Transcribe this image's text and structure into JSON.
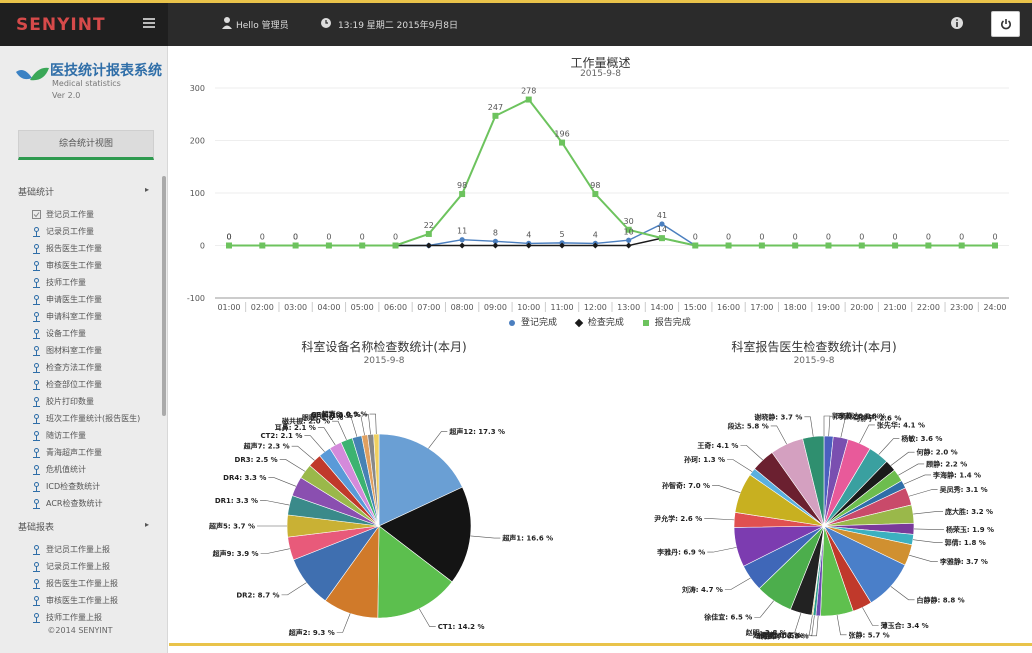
{
  "brand": "SENYINT",
  "header": {
    "hello": "Hello 管理员",
    "datetime": "13:19 星期二 2015年9月8日"
  },
  "sidebar": {
    "title": "医技统计报表系统",
    "subtitle": "Medical statistics",
    "version": "Ver 2.0",
    "overview_button": "综合统计视图",
    "section1": "基础统计",
    "section1_items": [
      "登记员工作量",
      "记录员工作量",
      "报告医生工作量",
      "审核医生工作量",
      "技师工作量",
      "申请医生工作量",
      "申请科室工作量",
      "设备工作量",
      "图材料室工作量",
      "检查方法工作量",
      "检查部位工作量",
      "胶片打印数量",
      "班次工作量统计(报告医生)",
      "随访工作量",
      "青海超声工作量",
      "危机值统计",
      "ICD检查数统计",
      "ACR检查数统计"
    ],
    "section2": "基础报表",
    "section2_items": [
      "登记员工作量上报",
      "记录员工作量上报",
      "报告医生工作量上报",
      "审核医生工作量上报",
      "技师工作量上报"
    ],
    "copyright": "©2014 SENYINT"
  },
  "line_chart_titles": {
    "title": "工作量概述",
    "date": "2015-9-8"
  },
  "legend": [
    "登记完成",
    "检查完成",
    "报告完成"
  ],
  "pie1_titles": {
    "title": "科室设备名称检查数统计(本月)",
    "date": "2015-9-8"
  },
  "pie2_titles": {
    "title": "科室报告医生检查数统计(本月)",
    "date": "2015-9-8"
  },
  "chart_data": [
    {
      "type": "line",
      "title": "工作量概述",
      "subtitle": "2015-9-8",
      "x": [
        "01:00",
        "02:00",
        "03:00",
        "04:00",
        "05:00",
        "06:00",
        "07:00",
        "08:00",
        "09:00",
        "10:00",
        "11:00",
        "12:00",
        "13:00",
        "14:00",
        "15:00",
        "16:00",
        "17:00",
        "18:00",
        "19:00",
        "20:00",
        "21:00",
        "22:00",
        "23:00",
        "24:00"
      ],
      "yticks": [
        -100,
        0,
        100,
        200,
        300
      ],
      "ylim": [
        -100,
        300
      ],
      "series": [
        {
          "name": "登记完成",
          "color": "#4b7fbf",
          "marker": "circle",
          "values": [
            0,
            0,
            0,
            0,
            0,
            0,
            0,
            11,
            8,
            4,
            5,
            4,
            10,
            41,
            0,
            0,
            0,
            0,
            0,
            0,
            0,
            0,
            0,
            0
          ]
        },
        {
          "name": "检查完成",
          "color": "#1a1a1a",
          "marker": "diamond",
          "values": [
            0,
            0,
            0,
            0,
            0,
            0,
            0,
            0,
            0,
            0,
            0,
            0,
            0,
            14,
            0,
            0,
            0,
            0,
            0,
            0,
            0,
            0,
            0,
            0
          ]
        },
        {
          "name": "报告完成",
          "color": "#6dc35e",
          "marker": "square",
          "values": [
            0,
            0,
            0,
            0,
            0,
            0,
            22,
            98,
            247,
            278,
            196,
            98,
            30,
            14,
            0,
            0,
            0,
            0,
            0,
            0,
            0,
            0,
            0,
            0
          ]
        }
      ],
      "labels": {
        "0": [
          "0",
          "0",
          "0"
        ],
        "1": [
          "0"
        ],
        "2": [
          "0",
          "0"
        ],
        "3": [
          "0"
        ],
        "4": [
          "0"
        ],
        "5": [
          "0"
        ],
        "6": [
          "22"
        ],
        "7": [
          "98",
          "11"
        ],
        "8": [
          "247",
          "8"
        ],
        "9": [
          "278",
          "4"
        ],
        "10": [
          "196",
          "5"
        ],
        "11": [
          "98",
          "4"
        ],
        "12": [
          "30",
          "10"
        ],
        "13": [
          "41",
          "14"
        ],
        "14": [
          "0"
        ],
        "15": [
          "0"
        ],
        "16": [
          "0"
        ],
        "17": [
          "0"
        ],
        "18": [
          "0"
        ],
        "19": [
          "0"
        ],
        "20": [
          "0"
        ],
        "21": [
          "0"
        ],
        "22": [
          "0"
        ],
        "23": [
          "0"
        ]
      },
      "legend_position": "bottom"
    },
    {
      "type": "pie",
      "title": "科室设备名称检查数统计(本月)",
      "subtitle": "2015-9-8",
      "slices": [
        {
          "label": "超声12",
          "value": 17.3,
          "color": "#6a9fd4"
        },
        {
          "label": "超声1",
          "value": 16.6,
          "color": "#141414"
        },
        {
          "label": "CT1",
          "value": 14.2,
          "color": "#5cbf4e"
        },
        {
          "label": "超声2",
          "value": 9.3,
          "color": "#d07a2a"
        },
        {
          "label": "DR2",
          "value": 8.7,
          "color": "#3f6fb0"
        },
        {
          "label": "超声9",
          "value": 3.9,
          "color": "#e85a7a"
        },
        {
          "label": "超声5",
          "value": 3.7,
          "color": "#c9b134"
        },
        {
          "label": "DR1",
          "value": 3.3,
          "color": "#3a8a8a"
        },
        {
          "label": "DR4",
          "value": 3.3,
          "color": "#8a4fb0"
        },
        {
          "label": "DR3",
          "value": 2.5,
          "color": "#9ab84a"
        },
        {
          "label": "超声7",
          "value": 2.3,
          "color": "#c0392b"
        },
        {
          "label": "CT2",
          "value": 2.1,
          "color": "#5a9ad8"
        },
        {
          "label": "耳鼻",
          "value": 2.1,
          "color": "#d48adb"
        },
        {
          "label": "磁共振",
          "value": 2.0,
          "color": "#3cb371"
        },
        {
          "label": "眼眶",
          "value": 1.6,
          "color": "#4682b4"
        },
        {
          "label": "胃镜",
          "value": 1.0,
          "color": "#e0a060"
        },
        {
          "label": "GE CT",
          "value": 1.0,
          "color": "#888888"
        },
        {
          "label": "超声6",
          "value": 0.9,
          "color": "#f0d060"
        }
      ]
    },
    {
      "type": "pie",
      "title": "科室报告医生检查数统计(本月)",
      "subtitle": "2015-9-8",
      "slices": [
        {
          "label": "李英达",
          "value": 1.6,
          "color": "#4b5fbf"
        },
        {
          "label": "马静宇",
          "value": 2.6,
          "color": "#7a4fb0"
        },
        {
          "label": "张先华",
          "value": 4.1,
          "color": "#e85a9a"
        },
        {
          "label": "杨敏",
          "value": 3.6,
          "color": "#3aa0a0"
        },
        {
          "label": "何静",
          "value": 2.0,
          "color": "#1a1a1a"
        },
        {
          "label": "顾静",
          "value": 2.2,
          "color": "#6dbd4e"
        },
        {
          "label": "李海静",
          "value": 1.4,
          "color": "#2f6ea8"
        },
        {
          "label": "吴凤秀",
          "value": 3.1,
          "color": "#c94a6a"
        },
        {
          "label": "庞大胜",
          "value": 3.2,
          "color": "#9ab84a"
        },
        {
          "label": "杨荣玉",
          "value": 1.9,
          "color": "#7a3a9a"
        },
        {
          "label": "郭倩",
          "value": 1.8,
          "color": "#3cb0c0"
        },
        {
          "label": "李雅静",
          "value": 3.7,
          "color": "#d09030"
        },
        {
          "label": "白静静",
          "value": 8.8,
          "color": "#4a7fc9"
        },
        {
          "label": "薄玉合",
          "value": 3.4,
          "color": "#c0392b"
        },
        {
          "label": "张静",
          "value": 5.7,
          "color": "#5fc04e"
        },
        {
          "label": "韩凤琴",
          "value": 0.8,
          "color": "#6a4ab0"
        },
        {
          "label": "谢艳霞",
          "value": 0.5,
          "color": "#2b9a8a"
        },
        {
          "label": "赵雨静",
          "value": 0.2,
          "color": "#e0c040"
        },
        {
          "label": "赵明",
          "value": 3.8,
          "color": "#222222"
        },
        {
          "label": "徐佳宜",
          "value": 6.5,
          "color": "#4cae4c"
        },
        {
          "label": "刘涛",
          "value": 4.7,
          "color": "#3f67b8"
        },
        {
          "label": "李雅丹",
          "value": 6.9,
          "color": "#7c3cb0"
        },
        {
          "label": "尹允学",
          "value": 2.6,
          "color": "#e05050"
        },
        {
          "label": "孙智奇",
          "value": 7.0,
          "color": "#c8b020"
        },
        {
          "label": "孙珂",
          "value": 1.3,
          "color": "#5ab0e0"
        },
        {
          "label": "王奇",
          "value": 4.1,
          "color": "#6b2030"
        },
        {
          "label": "段达",
          "value": 5.8,
          "color": "#d4a0c0"
        },
        {
          "label": "谢晓静",
          "value": 3.7,
          "color": "#2f8f6f"
        },
        {
          "label": "郭晓林",
          "value": 0.0,
          "color": "#a0a0a0"
        }
      ]
    }
  ]
}
